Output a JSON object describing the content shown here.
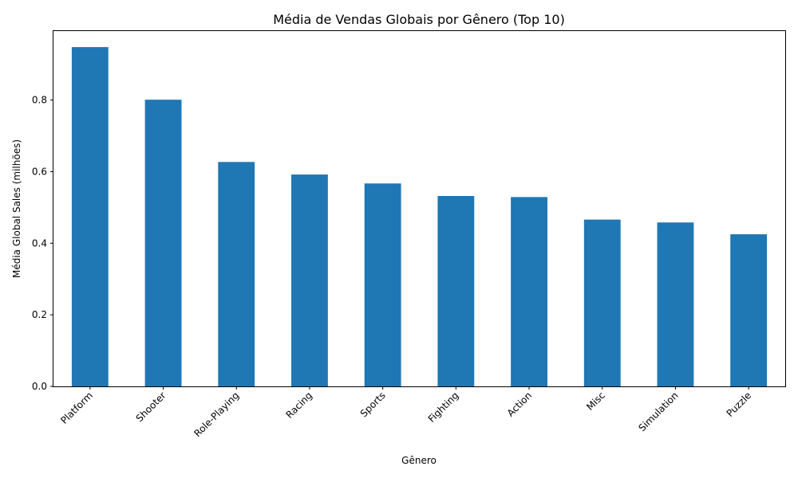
{
  "chart_data": {
    "type": "bar",
    "title": "Média de Vendas Globais por Gênero (Top 10)",
    "xlabel": "Gênero",
    "ylabel": "Média Global Sales (milhões)",
    "categories": [
      "Platform",
      "Shooter",
      "Role-Playing",
      "Racing",
      "Sports",
      "Fighting",
      "Action",
      "Misc",
      "Simulation",
      "Puzzle"
    ],
    "values": [
      0.948,
      0.801,
      0.627,
      0.592,
      0.567,
      0.532,
      0.529,
      0.466,
      0.458,
      0.425
    ],
    "ylim": [
      0,
      0.995
    ],
    "yticks": [
      0.0,
      0.2,
      0.4,
      0.6,
      0.8
    ],
    "ytick_labels": [
      "0.0",
      "0.2",
      "0.4",
      "0.6",
      "0.8"
    ],
    "bar_color": "#1f77b4",
    "grid": false,
    "legend": "none"
  }
}
